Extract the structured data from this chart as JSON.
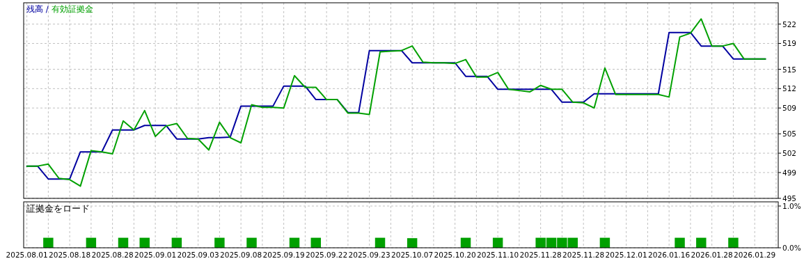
{
  "chart_data": [
    {
      "type": "line",
      "legend": "top left",
      "grid": true,
      "line_style": "solid",
      "tick_labels": "y",
      "annotations": [
        "/"
      ],
      "categories": [
        "2025.08.01",
        null,
        null,
        null,
        "2025.08.18",
        null,
        null,
        null,
        "2025.08.28",
        null,
        null,
        null,
        "2025.09.01",
        null,
        null,
        null,
        "2025.09.03",
        null,
        null,
        null,
        "2025.09.08",
        null,
        null,
        null,
        "2025.09.19",
        null,
        null,
        null,
        "2025.09.22",
        null,
        null,
        null,
        "2025.09.23",
        null,
        null,
        null,
        "2025.10.07",
        null,
        null,
        null,
        "2025.10.20",
        null,
        null,
        null,
        "2025.11.10",
        null,
        null,
        null,
        "2025.11.28",
        null,
        null,
        null,
        "2025.11.28",
        null,
        null,
        null,
        "2025.12.01",
        null,
        null,
        null,
        "2026.01.16",
        null,
        null,
        null,
        "2026.01.28",
        null,
        null,
        null,
        "2026.01.29",
        null
      ],
      "ylim": [
        495,
        525.3
      ],
      "yticks": [
        495,
        499,
        502,
        505,
        509,
        512,
        515,
        519,
        522
      ],
      "series": [
        {
          "name": "残高",
          "color": "#0000a0",
          "values": [
            500.0,
            500.0,
            498.0,
            498.0,
            498.0,
            502.2,
            502.2,
            502.2,
            505.6,
            505.6,
            505.6,
            506.3,
            506.3,
            506.3,
            504.2,
            504.2,
            504.2,
            504.4,
            504.4,
            504.5,
            509.3,
            509.3,
            509.3,
            509.3,
            512.4,
            512.4,
            512.4,
            510.3,
            510.3,
            510.3,
            508.3,
            508.3,
            517.9,
            517.9,
            517.9,
            517.9,
            516.0,
            516.0,
            516.0,
            516.0,
            516.0,
            513.9,
            513.9,
            513.9,
            511.9,
            511.9,
            511.9,
            511.9,
            511.9,
            511.9,
            509.9,
            509.9,
            509.9,
            511.2,
            511.2,
            511.2,
            511.2,
            511.2,
            511.2,
            511.2,
            520.7,
            520.7,
            520.7,
            518.6,
            518.6,
            518.6,
            516.6,
            516.6,
            516.6,
            516.6
          ]
        },
        {
          "name": "有効証拠金",
          "color": "#00a000",
          "values": [
            500.0,
            500.0,
            500.3,
            498.1,
            497.9,
            496.9,
            502.4,
            502.2,
            501.9,
            507.0,
            505.6,
            508.6,
            504.6,
            506.2,
            506.6,
            504.3,
            504.2,
            502.5,
            506.8,
            504.4,
            503.6,
            509.5,
            509.1,
            509.1,
            509.0,
            514.0,
            512.2,
            512.2,
            510.3,
            510.3,
            508.2,
            508.2,
            508.0,
            517.7,
            517.8,
            517.9,
            518.6,
            516.1,
            516.0,
            516.0,
            515.9,
            516.5,
            513.8,
            513.8,
            514.5,
            511.9,
            511.7,
            511.5,
            512.5,
            511.9,
            511.9,
            509.9,
            509.8,
            509.0,
            515.2,
            511.1,
            511.1,
            511.1,
            511.1,
            511.1,
            510.7,
            520.0,
            520.6,
            522.8,
            518.6,
            518.6,
            519.0,
            516.6,
            516.6,
            516.6
          ]
        }
      ]
    },
    {
      "type": "bar",
      "title": "証拠金をロード",
      "grid": true,
      "color": "#00a000",
      "categories": [
        "2025.08.01",
        null,
        null,
        null,
        "2025.08.18",
        null,
        null,
        null,
        "2025.08.28",
        null,
        null,
        null,
        "2025.09.01",
        null,
        null,
        null,
        "2025.09.03",
        null,
        null,
        null,
        "2025.09.08",
        null,
        null,
        null,
        "2025.09.19",
        null,
        null,
        null,
        "2025.09.22",
        null,
        null,
        null,
        "2025.09.23",
        null,
        null,
        null,
        "2025.10.07",
        null,
        null,
        null,
        "2025.10.20",
        null,
        null,
        null,
        "2025.11.10",
        null,
        null,
        null,
        "2025.11.28",
        null,
        null,
        null,
        "2025.11.28",
        null,
        null,
        null,
        "2025.12.01",
        null,
        null,
        null,
        "2026.01.16",
        null,
        null,
        null,
        "2026.01.28",
        null,
        null,
        null,
        "2026.01.29",
        null
      ],
      "ylim": [
        0,
        1.1
      ],
      "yticks": [
        {
          "value": 0,
          "label": "0.0%"
        },
        {
          "value": 1,
          "label": "1.0%"
        }
      ],
      "values": [
        null,
        null,
        0.24,
        null,
        null,
        null,
        0.24,
        null,
        null,
        0.24,
        null,
        0.24,
        null,
        null,
        0.24,
        null,
        null,
        null,
        0.24,
        null,
        null,
        0.24,
        null,
        null,
        null,
        0.24,
        null,
        0.24,
        null,
        null,
        null,
        null,
        null,
        0.24,
        null,
        null,
        0.23,
        null,
        null,
        null,
        null,
        0.24,
        null,
        null,
        0.24,
        null,
        null,
        null,
        0.24,
        0.24,
        0.24,
        0.24,
        null,
        null,
        0.24,
        null,
        null,
        null,
        null,
        null,
        null,
        0.24,
        null,
        0.24,
        null,
        null,
        0.24,
        null,
        null,
        null
      ]
    }
  ]
}
